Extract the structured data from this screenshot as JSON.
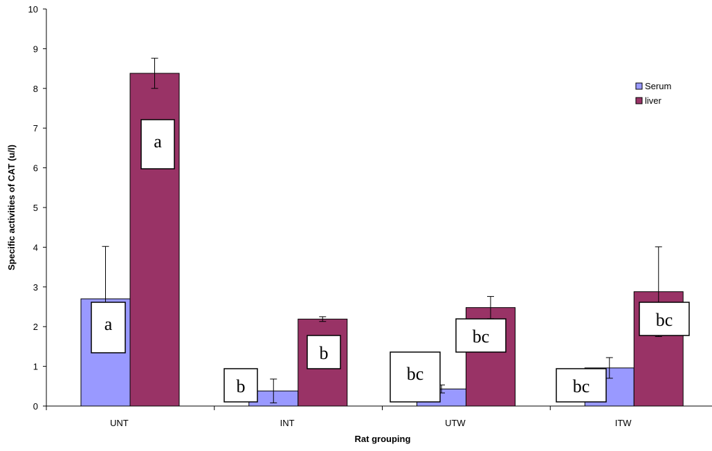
{
  "chart_data": {
    "type": "bar",
    "title": "",
    "xlabel": "Rat grouping",
    "ylabel": "Specific activities of CAT (u/l)",
    "ylim": [
      0,
      10
    ],
    "yticks": [
      0,
      1,
      2,
      3,
      4,
      5,
      6,
      7,
      8,
      9,
      10
    ],
    "categories": [
      "UNT",
      "INT",
      "UTW",
      "ITW"
    ],
    "series": [
      {
        "name": "Serum",
        "color": "#9999ff",
        "values": [
          2.7,
          0.38,
          0.43,
          0.96
        ],
        "errors": [
          1.32,
          0.3,
          0.1,
          0.26
        ]
      },
      {
        "name": "liver",
        "color": "#993366",
        "values": [
          8.38,
          2.19,
          2.48,
          2.88
        ],
        "errors": [
          0.38,
          0.06,
          0.28,
          1.13
        ]
      }
    ],
    "annotations": [
      {
        "category": "UNT",
        "series": "Serum",
        "text": "a"
      },
      {
        "category": "UNT",
        "series": "liver",
        "text": "a"
      },
      {
        "category": "INT",
        "series": "Serum",
        "text": "b"
      },
      {
        "category": "INT",
        "series": "liver",
        "text": "b"
      },
      {
        "category": "UTW",
        "series": "Serum",
        "text": "bc"
      },
      {
        "category": "UTW",
        "series": "liver",
        "text": "bc"
      },
      {
        "category": "ITW",
        "series": "Serum",
        "text": "bc"
      },
      {
        "category": "ITW",
        "series": "liver",
        "text": "bc"
      }
    ],
    "legend": {
      "position": "top-right",
      "entries": [
        "Serum",
        "liver"
      ]
    },
    "grid": false
  }
}
